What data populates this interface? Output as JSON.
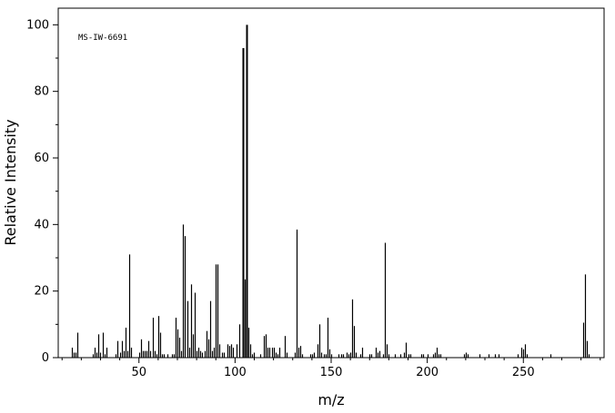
{
  "chart_data": {
    "type": "bar",
    "annotation": "MS-IW-6691",
    "xlabel": "m/z",
    "ylabel": "Relative Intensity",
    "xlim": [
      8,
      292
    ],
    "ylim": [
      0,
      105
    ],
    "xticks": [
      50,
      100,
      150,
      200,
      250
    ],
    "yticks": [
      0,
      20,
      40,
      60,
      80,
      100
    ],
    "grid": false,
    "peaks": [
      [
        15,
        3
      ],
      [
        16,
        1.5
      ],
      [
        17,
        1.5
      ],
      [
        18,
        7.5
      ],
      [
        26,
        1
      ],
      [
        27,
        3
      ],
      [
        28,
        1.5
      ],
      [
        29,
        7
      ],
      [
        30,
        1.5
      ],
      [
        31,
        7.5
      ],
      [
        32,
        1
      ],
      [
        33,
        3
      ],
      [
        38,
        1
      ],
      [
        39,
        5
      ],
      [
        40,
        1.5
      ],
      [
        41,
        5
      ],
      [
        42,
        2
      ],
      [
        43,
        9
      ],
      [
        44,
        2
      ],
      [
        45,
        31
      ],
      [
        46,
        3
      ],
      [
        50,
        1.5
      ],
      [
        51,
        5.5
      ],
      [
        52,
        2
      ],
      [
        53,
        2
      ],
      [
        54,
        2
      ],
      [
        55,
        5
      ],
      [
        56,
        2
      ],
      [
        57,
        12
      ],
      [
        58,
        2
      ],
      [
        59,
        1
      ],
      [
        60,
        12.5
      ],
      [
        61,
        7.5
      ],
      [
        62,
        1
      ],
      [
        63,
        1
      ],
      [
        65,
        1
      ],
      [
        67,
        1
      ],
      [
        68,
        1
      ],
      [
        69,
        12
      ],
      [
        70,
        8.5
      ],
      [
        71,
        6
      ],
      [
        72,
        2
      ],
      [
        73,
        40
      ],
      [
        74,
        36.5
      ],
      [
        75,
        17
      ],
      [
        76,
        3
      ],
      [
        77,
        22
      ],
      [
        78,
        7
      ],
      [
        79,
        19.5
      ],
      [
        80,
        2
      ],
      [
        81,
        3
      ],
      [
        82,
        2
      ],
      [
        83,
        1.5
      ],
      [
        84,
        2
      ],
      [
        85,
        8
      ],
      [
        86,
        5.5
      ],
      [
        87,
        17
      ],
      [
        88,
        2
      ],
      [
        89,
        3
      ],
      [
        90,
        28
      ],
      [
        91,
        28
      ],
      [
        92,
        4
      ],
      [
        93,
        1.5
      ],
      [
        94,
        1.5
      ],
      [
        96,
        4
      ],
      [
        97,
        3.5
      ],
      [
        98,
        4
      ],
      [
        99,
        3
      ],
      [
        101,
        4
      ],
      [
        102,
        10
      ],
      [
        104,
        93
      ],
      [
        105,
        23.5
      ],
      [
        106,
        100
      ],
      [
        107,
        9
      ],
      [
        108,
        4
      ],
      [
        109,
        1
      ],
      [
        110,
        1.5
      ],
      [
        113,
        1
      ],
      [
        115,
        6.5
      ],
      [
        116,
        7
      ],
      [
        117,
        3
      ],
      [
        118,
        3
      ],
      [
        119,
        3
      ],
      [
        120,
        3
      ],
      [
        121,
        1.5
      ],
      [
        122,
        1
      ],
      [
        123,
        3
      ],
      [
        126,
        6.5
      ],
      [
        127,
        1.5
      ],
      [
        131,
        1.5
      ],
      [
        132,
        38.5
      ],
      [
        133,
        3
      ],
      [
        134,
        3.5
      ],
      [
        135,
        1
      ],
      [
        139,
        1
      ],
      [
        140,
        1
      ],
      [
        141,
        1.5
      ],
      [
        143,
        4
      ],
      [
        144,
        10
      ],
      [
        145,
        1.5
      ],
      [
        146,
        1
      ],
      [
        147,
        1
      ],
      [
        148,
        12
      ],
      [
        149,
        2.5
      ],
      [
        150,
        1
      ],
      [
        154,
        1
      ],
      [
        155,
        1
      ],
      [
        156,
        1
      ],
      [
        158,
        1.5
      ],
      [
        159,
        1
      ],
      [
        160,
        1.5
      ],
      [
        161,
        17.5
      ],
      [
        162,
        9.5
      ],
      [
        163,
        1.5
      ],
      [
        165,
        1
      ],
      [
        166,
        3
      ],
      [
        170,
        1
      ],
      [
        171,
        1
      ],
      [
        173,
        3
      ],
      [
        174,
        1.5
      ],
      [
        175,
        2
      ],
      [
        177,
        1
      ],
      [
        178,
        34.5
      ],
      [
        179,
        4
      ],
      [
        180,
        1
      ],
      [
        183,
        1
      ],
      [
        186,
        1
      ],
      [
        188,
        1.5
      ],
      [
        189,
        4.5
      ],
      [
        190,
        1
      ],
      [
        191,
        1
      ],
      [
        197,
        1
      ],
      [
        198,
        1
      ],
      [
        200,
        1
      ],
      [
        203,
        1
      ],
      [
        204,
        1.5
      ],
      [
        205,
        3
      ],
      [
        206,
        1
      ],
      [
        207,
        1
      ],
      [
        219,
        1
      ],
      [
        220,
        1.5
      ],
      [
        221,
        1
      ],
      [
        227,
        1
      ],
      [
        232,
        1
      ],
      [
        235,
        1
      ],
      [
        237,
        1
      ],
      [
        247,
        1
      ],
      [
        249,
        3
      ],
      [
        250,
        2.5
      ],
      [
        251,
        4
      ],
      [
        252,
        1
      ],
      [
        264,
        1
      ],
      [
        281,
        10.5
      ],
      [
        282,
        25
      ],
      [
        283,
        5
      ],
      [
        284,
        1
      ]
    ]
  }
}
